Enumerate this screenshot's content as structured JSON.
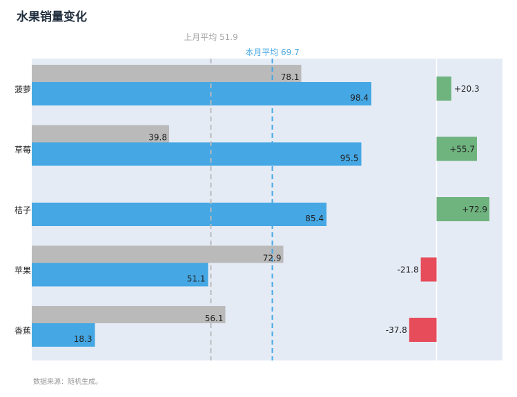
{
  "title": "水果销量变化",
  "source": "数据来源：随机生成。",
  "colors": {
    "current": "#45a7e3",
    "previous": "#bababa",
    "increase": "#6fb37f",
    "decrease": "#e64c5a",
    "plot_bg": "#e5ebf5"
  },
  "chart_data": {
    "type": "bar",
    "orientation": "horizontal",
    "categories": [
      "菠萝",
      "草莓",
      "桔子",
      "苹果",
      "香蕉"
    ],
    "series": [
      {
        "name": "上月",
        "values": [
          78.1,
          39.8,
          null,
          72.9,
          56.1
        ]
      },
      {
        "name": "本月",
        "values": [
          98.4,
          95.5,
          85.4,
          51.1,
          18.3
        ]
      }
    ],
    "changes": [
      {
        "value": 20.3,
        "label": "+20.3"
      },
      {
        "value": 55.7,
        "label": "+55.7"
      },
      {
        "value": 72.9,
        "label": "+72.9"
      },
      {
        "value": -21.8,
        "label": "-21.8"
      },
      {
        "value": -37.8,
        "label": "-37.8"
      }
    ],
    "averages": [
      {
        "value": 51.9,
        "label": "上月平均 51.9"
      },
      {
        "value": 69.7,
        "label": "本月平均 69.7"
      }
    ],
    "xlim": [
      0,
      100
    ]
  }
}
